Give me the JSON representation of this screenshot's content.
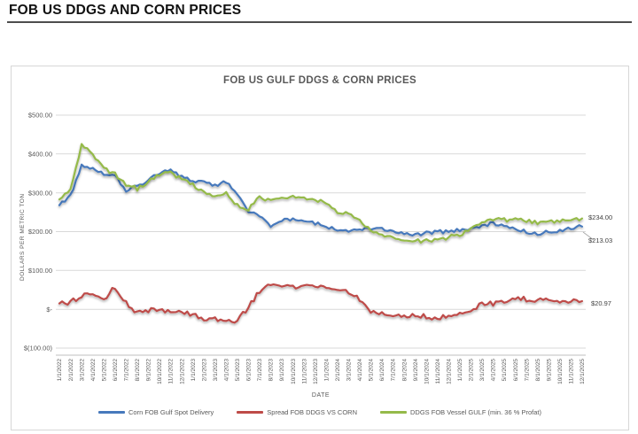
{
  "page": {
    "title": "FOB US DDGS AND CORN PRICES"
  },
  "chart": {
    "title": "FOB US GULF DDGS & CORN PRICES",
    "y_axis_title": "DOLLARS PER METRIC TON",
    "x_axis_title": "DATE",
    "y_tick_labels": [
      "$500.00",
      "$400.00",
      "$300.00",
      "$200.00",
      "$100.00",
      "$-",
      "$(100.00)"
    ],
    "end_labels": {
      "ddgs": "$234.00",
      "corn": "$213.03",
      "spread": "$20.97"
    }
  },
  "chart_data": {
    "type": "line",
    "title": "FOB US GULF DDGS & CORN PRICES",
    "xlabel": "DATE",
    "ylabel": "DOLLARS PER METRIC TON",
    "ylim": [
      -100,
      500
    ],
    "y_ticks": [
      500,
      400,
      300,
      200,
      100,
      0,
      -100
    ],
    "grid": "horizontal",
    "legend_position": "bottom",
    "x": [
      "1/1/2022",
      "2/1/2022",
      "3/1/2022",
      "4/1/2022",
      "5/1/2022",
      "6/1/2022",
      "7/1/2022",
      "8/1/2022",
      "9/1/2022",
      "10/1/2022",
      "11/1/2022",
      "12/1/2022",
      "1/1/2023",
      "2/1/2023",
      "3/1/2023",
      "4/1/2023",
      "5/1/2023",
      "6/1/2023",
      "7/1/2023",
      "8/1/2023",
      "9/1/2023",
      "10/1/2023",
      "11/1/2023",
      "12/1/2023",
      "1/1/2024",
      "2/1/2024",
      "3/1/2024",
      "4/1/2024",
      "5/1/2024",
      "6/1/2024",
      "7/1/2024",
      "8/1/2024",
      "9/1/2024",
      "10/1/2024",
      "11/1/2024",
      "12/1/2024",
      "1/1/2025",
      "2/1/2025",
      "3/1/2025",
      "4/1/2025",
      "5/1/2025",
      "6/1/2025",
      "7/1/2025",
      "8/1/2025",
      "9/1/2025",
      "10/1/2025",
      "11/1/2025",
      "12/1/2025"
    ],
    "series": [
      {
        "name": "Corn FOB Gulf Spot Delivery",
        "color": "#4779BC",
        "end_label": "$213.03",
        "values": [
          268,
          292,
          370,
          362,
          348,
          342,
          306,
          318,
          332,
          352,
          358,
          342,
          332,
          328,
          318,
          330,
          298,
          252,
          242,
          214,
          228,
          234,
          228,
          222,
          214,
          205,
          202,
          205,
          208,
          206,
          200,
          194,
          190,
          196,
          200,
          200,
          204,
          208,
          214,
          222,
          216,
          208,
          200,
          194,
          199,
          204,
          210,
          213.03
        ]
      },
      {
        "name": "Spread FOB DDGS VS CORN",
        "color": "#BE4B48",
        "end_label": "$20.97",
        "values": [
          15,
          18,
          35,
          38,
          22,
          58,
          16,
          -8,
          -2,
          -4,
          -6,
          -8,
          -12,
          -26,
          -26,
          -32,
          -30,
          6,
          46,
          62,
          60,
          58,
          57,
          60,
          58,
          45,
          46,
          25,
          -8,
          -12,
          -14,
          -16,
          -17,
          -18,
          -24,
          -14,
          -12,
          0,
          13,
          15,
          22,
          28,
          26,
          22,
          25,
          23,
          22,
          20.97
        ]
      },
      {
        "name": "DDGS FOB Vessel GULF  (min. 36 % Profat)",
        "color": "#95BA4A",
        "end_label": "$234.00",
        "values": [
          283,
          310,
          425,
          400,
          362,
          348,
          322,
          310,
          330,
          348,
          352,
          334,
          320,
          302,
          292,
          298,
          268,
          258,
          288,
          280,
          288,
          292,
          286,
          282,
          272,
          250,
          248,
          230,
          200,
          194,
          186,
          178,
          175,
          178,
          178,
          186,
          192,
          208,
          226,
          232,
          230,
          232,
          228,
          222,
          226,
          227,
          230,
          234.0
        ]
      }
    ]
  }
}
